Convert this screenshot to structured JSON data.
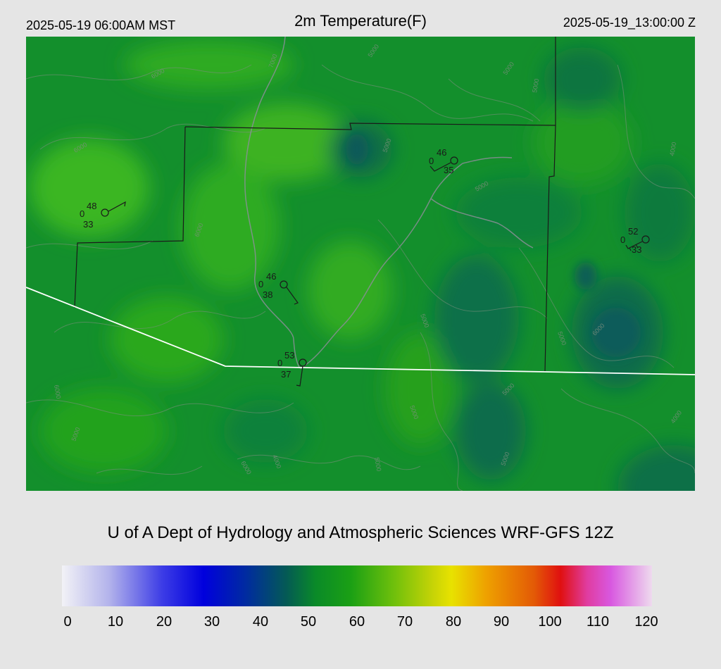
{
  "header": {
    "local_time": "2025-05-19 06:00AM MST",
    "title": "2m Temperature(F)",
    "valid_time": "2025-05-19_13:00:00 Z"
  },
  "credit": "U of A Dept of Hydrology and Atmospheric Sciences WRF-GFS 12Z",
  "colorbar": {
    "tick_labels": [
      "0",
      "10",
      "20",
      "30",
      "40",
      "50",
      "60",
      "70",
      "80",
      "90",
      "100",
      "110",
      "120"
    ]
  },
  "stations": [
    {
      "id": "s1",
      "temp": "48",
      "cover": "0",
      "dew": "33"
    },
    {
      "id": "s2",
      "temp": "46",
      "cover": "0",
      "dew": "35"
    },
    {
      "id": "s3",
      "temp": "52",
      "cover": "0",
      "dew": "33"
    },
    {
      "id": "s4",
      "temp": "46",
      "cover": "0",
      "dew": "38"
    },
    {
      "id": "s5",
      "temp": "53",
      "cover": "0",
      "dew": "37"
    }
  ],
  "contour_labels": [
    "4000",
    "5000",
    "6000",
    "7000"
  ],
  "colors": {
    "background": "#e5e5e5",
    "field_green": "#13a01a",
    "field_dark": "#0a6a48",
    "state_border": "#ffffff",
    "county_border": "#1a1a1a"
  }
}
